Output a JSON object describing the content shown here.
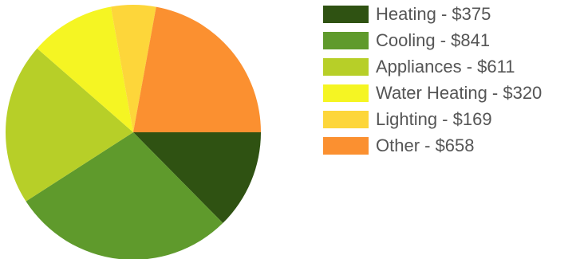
{
  "chart_data": {
    "type": "pie",
    "categories": [
      "Heating",
      "Cooling",
      "Appliances",
      "Water Heating",
      "Lighting",
      "Other"
    ],
    "values": [
      375,
      841,
      611,
      320,
      169,
      658
    ],
    "colors": [
      "#2f5212",
      "#5f9a2c",
      "#b7cf28",
      "#f5f523",
      "#fdd63a",
      "#fb9030"
    ],
    "legend_labels": [
      "Heating - $375",
      "Cooling - $841",
      "Appliances - $611",
      "Water Heating - $320",
      "Lighting - $169",
      "Other - $658"
    ],
    "legend_position": "right",
    "start_direction": "right-of-center, clockwise"
  }
}
